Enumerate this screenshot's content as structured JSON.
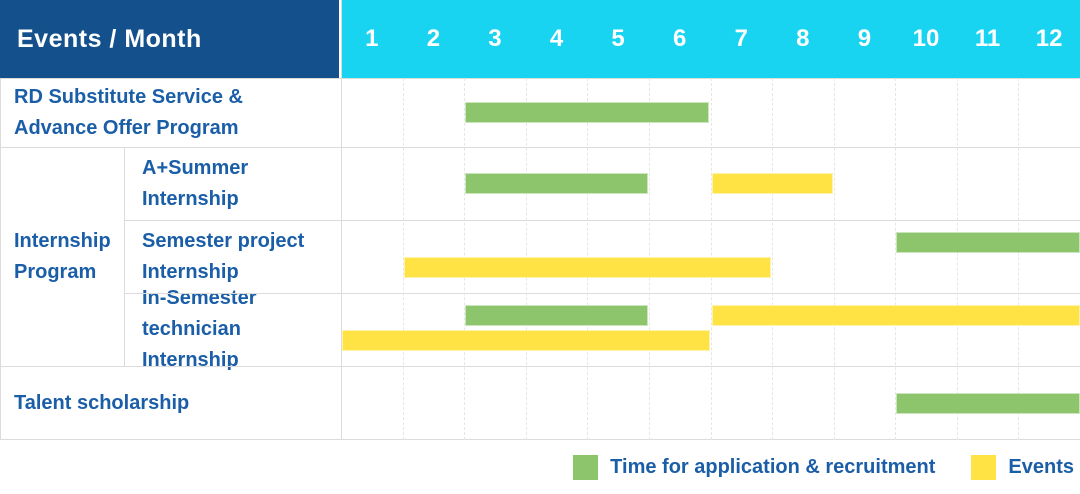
{
  "header": {
    "title": "Events / Month",
    "months": [
      "1",
      "2",
      "3",
      "4",
      "5",
      "6",
      "7",
      "8",
      "9",
      "10",
      "11",
      "12"
    ]
  },
  "colors": {
    "header_bg": "#14518C",
    "month_strip_bg": "#18D4F0",
    "header_text": "#FFFFFF",
    "label_text": "#1B5EA8",
    "application_green": "#8CC56B",
    "event_yellow": "#FFE345",
    "grid_line": "#E6E6E6",
    "border": "#DCDCDC"
  },
  "chart_data": {
    "type": "bar",
    "subtype": "gantt",
    "title": "Events / Month",
    "xlabel": "Month",
    "x_ticks": [
      "1",
      "2",
      "3",
      "4",
      "5",
      "6",
      "7",
      "8",
      "9",
      "10",
      "11",
      "12"
    ],
    "x_range": [
      1,
      12
    ],
    "grid": true,
    "legend_position": "bottom-right",
    "rows": [
      {
        "label": "RD Substitute Service & Advance Offer Program",
        "group": null,
        "bars": [
          {
            "kind": "application",
            "start_month": 3,
            "end_month": 6,
            "lane": "center"
          }
        ]
      },
      {
        "label": "A+Summer Internship",
        "group": "Internship Program",
        "bars": [
          {
            "kind": "application",
            "start_month": 3,
            "end_month": 5,
            "lane": "center"
          },
          {
            "kind": "event",
            "start_month": 7,
            "end_month": 8,
            "lane": "center"
          }
        ]
      },
      {
        "label": "Semester project Internship",
        "group": "Internship Program",
        "bars": [
          {
            "kind": "application",
            "start_month": 10,
            "end_month": 12,
            "lane": "top"
          },
          {
            "kind": "event",
            "start_month": 2,
            "end_month": 7,
            "lane": "bottom"
          }
        ]
      },
      {
        "label": "In-Semester technician Internship",
        "group": "Internship Program",
        "bars": [
          {
            "kind": "application",
            "start_month": 3,
            "end_month": 5,
            "lane": "top"
          },
          {
            "kind": "event",
            "start_month": 7,
            "end_month": 12,
            "lane": "top"
          },
          {
            "kind": "event",
            "start_month": 1,
            "end_month": 6,
            "lane": "bottom"
          }
        ]
      },
      {
        "label": "Talent scholarship",
        "group": null,
        "bars": [
          {
            "kind": "application",
            "start_month": 10,
            "end_month": 12,
            "lane": "center"
          }
        ]
      }
    ],
    "legend": [
      {
        "kind": "application",
        "label": "Time for application & recruitment",
        "color": "#8CC56B"
      },
      {
        "kind": "event",
        "label": "Events",
        "color": "#FFE345"
      }
    ]
  }
}
